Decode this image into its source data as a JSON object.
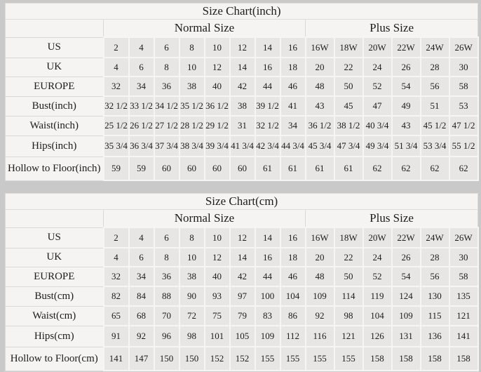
{
  "colors": {
    "page_background": "#c9c9c9",
    "header_cell_background": "#f5f4f2",
    "data_cell_background": "#e7e6e4",
    "table_top_border": "#949494",
    "text": "#1c1c1c"
  },
  "chart_data": [
    {
      "type": "table",
      "title": "Size Chart(inch)",
      "column_groups": [
        {
          "label": "Normal Size",
          "span": 8
        },
        {
          "label": "Plus Size",
          "span": 6
        }
      ],
      "rows": [
        {
          "label": "US",
          "values": [
            "2",
            "4",
            "6",
            "8",
            "10",
            "12",
            "14",
            "16",
            "16W",
            "18W",
            "20W",
            "22W",
            "24W",
            "26W"
          ]
        },
        {
          "label": "UK",
          "values": [
            "4",
            "6",
            "8",
            "10",
            "12",
            "14",
            "16",
            "18",
            "20",
            "22",
            "24",
            "26",
            "28",
            "30"
          ]
        },
        {
          "label": "EUROPE",
          "values": [
            "32",
            "34",
            "36",
            "38",
            "40",
            "42",
            "44",
            "46",
            "48",
            "50",
            "52",
            "54",
            "56",
            "58"
          ]
        },
        {
          "label": "Bust(inch)",
          "values": [
            "32 1/2",
            "33 1/2",
            "34 1/2",
            "35 1/2",
            "36 1/2",
            "38",
            "39 1/2",
            "41",
            "43",
            "45",
            "47",
            "49",
            "51",
            "53"
          ]
        },
        {
          "label": "Waist(inch)",
          "values": [
            "25 1/2",
            "26 1/2",
            "27 1/2",
            "28 1/2",
            "29 1/2",
            "31",
            "32 1/2",
            "34",
            "36 1/2",
            "38 1/2",
            "40 3/4",
            "43",
            "45 1/2",
            "47 1/2"
          ]
        },
        {
          "label": "Hips(inch)",
          "values": [
            "35 3/4",
            "36 3/4",
            "37 3/4",
            "38 3/4",
            "39 3/4",
            "41 3/4",
            "42 3/4",
            "44 3/4",
            "45 3/4",
            "47 3/4",
            "49 3/4",
            "51 3/4",
            "53 3/4",
            "55 1/2"
          ]
        },
        {
          "label": "Hollow to Floor(inch)",
          "values": [
            "59",
            "59",
            "60",
            "60",
            "60",
            "60",
            "61",
            "61",
            "61",
            "61",
            "62",
            "62",
            "62",
            "62"
          ]
        }
      ]
    },
    {
      "type": "table",
      "title": "Size Chart(cm)",
      "column_groups": [
        {
          "label": "Normal Size",
          "span": 8
        },
        {
          "label": "Plus Size",
          "span": 6
        }
      ],
      "rows": [
        {
          "label": "US",
          "values": [
            "2",
            "4",
            "6",
            "8",
            "10",
            "12",
            "14",
            "16",
            "16W",
            "18W",
            "20W",
            "22W",
            "24W",
            "26W"
          ]
        },
        {
          "label": "UK",
          "values": [
            "4",
            "6",
            "8",
            "10",
            "12",
            "14",
            "16",
            "18",
            "20",
            "22",
            "24",
            "26",
            "28",
            "30"
          ]
        },
        {
          "label": "EUROPE",
          "values": [
            "32",
            "34",
            "36",
            "38",
            "40",
            "42",
            "44",
            "46",
            "48",
            "50",
            "52",
            "54",
            "56",
            "58"
          ]
        },
        {
          "label": "Bust(cm)",
          "values": [
            "82",
            "84",
            "88",
            "90",
            "93",
            "97",
            "100",
            "104",
            "109",
            "114",
            "119",
            "124",
            "130",
            "135"
          ]
        },
        {
          "label": "Waist(cm)",
          "values": [
            "65",
            "68",
            "70",
            "72",
            "75",
            "79",
            "83",
            "86",
            "92",
            "98",
            "104",
            "109",
            "115",
            "121"
          ]
        },
        {
          "label": "Hips(cm)",
          "values": [
            "91",
            "92",
            "96",
            "98",
            "101",
            "105",
            "109",
            "112",
            "116",
            "121",
            "126",
            "131",
            "136",
            "141"
          ]
        },
        {
          "label": "Hollow to Floor(cm)",
          "values": [
            "141",
            "147",
            "150",
            "150",
            "152",
            "152",
            "155",
            "155",
            "155",
            "155",
            "158",
            "158",
            "158",
            "158"
          ]
        }
      ]
    }
  ]
}
